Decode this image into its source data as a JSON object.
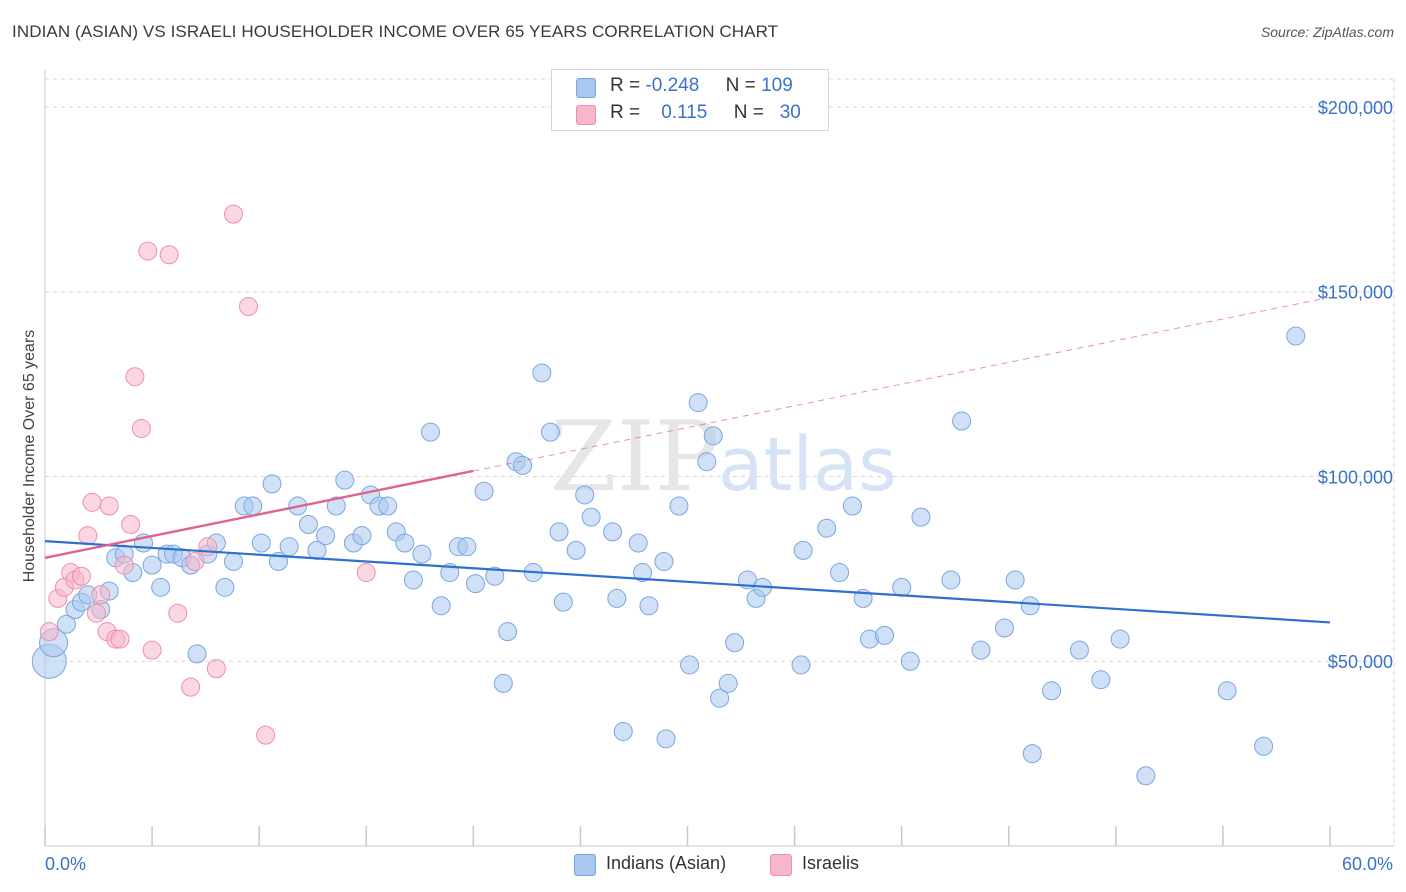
{
  "title": "INDIAN (ASIAN) VS ISRAELI HOUSEHOLDER INCOME OVER 65 YEARS CORRELATION CHART",
  "source": "Source: ZipAtlas.com",
  "watermark": {
    "zip": "ZIP",
    "atlas": "atlas"
  },
  "legend": {
    "rows": [
      {
        "r_label": "R =",
        "r_value": "-0.248",
        "n_label": "N =",
        "n_value": "109",
        "color": "#a9c8f0"
      },
      {
        "r_label": "R =",
        "r_value": "0.115",
        "n_label": "N =",
        "n_value": "30",
        "color": "#f5b7c9"
      }
    ]
  },
  "bottom_legend": {
    "series1": "Indians (Asian)",
    "series2": "Israelis"
  },
  "colors": {
    "blue_fill": "#a9c8f0",
    "blue_stroke": "#7aa6df",
    "blue_line": "#2f6fcd",
    "pink_fill": "#f5b7c9",
    "pink_stroke": "#ee8fab",
    "pink_line": "#e0628e",
    "tick_text": "#3a72c8",
    "grid": "#d9d9d9"
  },
  "chart_data": {
    "type": "scatter",
    "title": "INDIAN (ASIAN) VS ISRAELI HOUSEHOLDER INCOME OVER 65 YEARS CORRELATION CHART",
    "xlabel": "",
    "ylabel": "Householder Income Over 65 years",
    "xlim": [
      0,
      60
    ],
    "ylim": [
      0,
      210000
    ],
    "x_ticks_labels": [
      "0.0%",
      "60.0%"
    ],
    "y_ticks": [
      50000,
      100000,
      150000,
      200000
    ],
    "y_ticks_labels": [
      "$50,000",
      "$100,000",
      "$150,000",
      "$200,000"
    ],
    "grid": true,
    "legend_position": "top-center",
    "series": [
      {
        "name": "Indians (Asian)",
        "regression": {
          "x": [
            0,
            60
          ],
          "y": [
            82500,
            60500
          ],
          "style": "solid"
        },
        "points": [
          [
            0.2,
            50000
          ],
          [
            0.4,
            55000
          ],
          [
            1.0,
            60000
          ],
          [
            1.4,
            64000
          ],
          [
            1.7,
            66000
          ],
          [
            2.0,
            68000
          ],
          [
            2.6,
            64000
          ],
          [
            3.0,
            69000
          ],
          [
            3.3,
            78000
          ],
          [
            3.7,
            79000
          ],
          [
            4.1,
            74000
          ],
          [
            4.6,
            82000
          ],
          [
            5.0,
            76000
          ],
          [
            5.4,
            70000
          ],
          [
            5.7,
            79000
          ],
          [
            6.0,
            79000
          ],
          [
            6.4,
            78000
          ],
          [
            6.8,
            76000
          ],
          [
            7.1,
            52000
          ],
          [
            7.6,
            79000
          ],
          [
            8.0,
            82000
          ],
          [
            8.4,
            70000
          ],
          [
            8.8,
            77000
          ],
          [
            9.3,
            92000
          ],
          [
            9.7,
            92000
          ],
          [
            10.1,
            82000
          ],
          [
            10.6,
            98000
          ],
          [
            10.9,
            77000
          ],
          [
            11.4,
            81000
          ],
          [
            11.8,
            92000
          ],
          [
            12.3,
            87000
          ],
          [
            12.7,
            80000
          ],
          [
            13.1,
            84000
          ],
          [
            13.6,
            92000
          ],
          [
            14.0,
            99000
          ],
          [
            14.4,
            82000
          ],
          [
            14.8,
            84000
          ],
          [
            15.2,
            95000
          ],
          [
            15.6,
            92000
          ],
          [
            16.0,
            92000
          ],
          [
            16.4,
            85000
          ],
          [
            16.8,
            82000
          ],
          [
            17.2,
            72000
          ],
          [
            17.6,
            79000
          ],
          [
            18.0,
            112000
          ],
          [
            18.5,
            65000
          ],
          [
            18.9,
            74000
          ],
          [
            19.3,
            81000
          ],
          [
            19.7,
            81000
          ],
          [
            20.1,
            71000
          ],
          [
            20.5,
            96000
          ],
          [
            21.0,
            73000
          ],
          [
            21.4,
            44000
          ],
          [
            21.6,
            58000
          ],
          [
            22.0,
            104000
          ],
          [
            22.3,
            103000
          ],
          [
            22.8,
            74000
          ],
          [
            23.2,
            128000
          ],
          [
            23.6,
            112000
          ],
          [
            24.0,
            85000
          ],
          [
            24.2,
            66000
          ],
          [
            24.8,
            80000
          ],
          [
            25.2,
            95000
          ],
          [
            25.5,
            89000
          ],
          [
            26.5,
            85000
          ],
          [
            26.7,
            67000
          ],
          [
            27.0,
            31000
          ],
          [
            27.7,
            82000
          ],
          [
            27.9,
            74000
          ],
          [
            28.2,
            65000
          ],
          [
            28.9,
            77000
          ],
          [
            29.0,
            29000
          ],
          [
            29.6,
            92000
          ],
          [
            30.1,
            49000
          ],
          [
            30.5,
            120000
          ],
          [
            30.9,
            104000
          ],
          [
            31.2,
            111000
          ],
          [
            31.5,
            40000
          ],
          [
            31.9,
            44000
          ],
          [
            32.2,
            55000
          ],
          [
            32.8,
            72000
          ],
          [
            33.2,
            67000
          ],
          [
            33.5,
            70000
          ],
          [
            35.3,
            49000
          ],
          [
            35.4,
            80000
          ],
          [
            36.5,
            86000
          ],
          [
            37.1,
            74000
          ],
          [
            37.7,
            92000
          ],
          [
            38.2,
            67000
          ],
          [
            38.5,
            56000
          ],
          [
            39.2,
            57000
          ],
          [
            40.0,
            70000
          ],
          [
            40.4,
            50000
          ],
          [
            40.9,
            89000
          ],
          [
            42.3,
            72000
          ],
          [
            42.8,
            115000
          ],
          [
            43.7,
            53000
          ],
          [
            44.8,
            59000
          ],
          [
            45.3,
            72000
          ],
          [
            46.0,
            65000
          ],
          [
            46.1,
            25000
          ],
          [
            47.0,
            42000
          ],
          [
            48.3,
            53000
          ],
          [
            49.3,
            45000
          ],
          [
            50.2,
            56000
          ],
          [
            51.4,
            19000
          ],
          [
            55.2,
            42000
          ],
          [
            56.9,
            27000
          ],
          [
            58.4,
            138000
          ]
        ]
      },
      {
        "name": "Israelis",
        "regression": {
          "x": [
            0,
            20
          ],
          "y": [
            78000,
            101500
          ],
          "style": "solid",
          "extension": {
            "x": [
              20,
              60
            ],
            "y": [
              101500,
              148500
            ],
            "style": "dashed"
          }
        },
        "points": [
          [
            0.2,
            58000
          ],
          [
            0.6,
            67000
          ],
          [
            0.9,
            70000
          ],
          [
            1.2,
            74000
          ],
          [
            1.4,
            72000
          ],
          [
            1.7,
            73000
          ],
          [
            2.0,
            84000
          ],
          [
            2.2,
            93000
          ],
          [
            2.4,
            63000
          ],
          [
            2.6,
            68000
          ],
          [
            2.9,
            58000
          ],
          [
            3.0,
            92000
          ],
          [
            3.3,
            56000
          ],
          [
            3.5,
            56000
          ],
          [
            3.7,
            76000
          ],
          [
            4.0,
            87000
          ],
          [
            4.2,
            127000
          ],
          [
            4.5,
            113000
          ],
          [
            4.8,
            161000
          ],
          [
            5.0,
            53000
          ],
          [
            5.8,
            160000
          ],
          [
            6.2,
            63000
          ],
          [
            6.8,
            43000
          ],
          [
            7.0,
            77000
          ],
          [
            7.6,
            81000
          ],
          [
            8.0,
            48000
          ],
          [
            8.8,
            171000
          ],
          [
            9.5,
            146000
          ],
          [
            10.3,
            30000
          ],
          [
            15.0,
            74000
          ]
        ]
      }
    ]
  }
}
